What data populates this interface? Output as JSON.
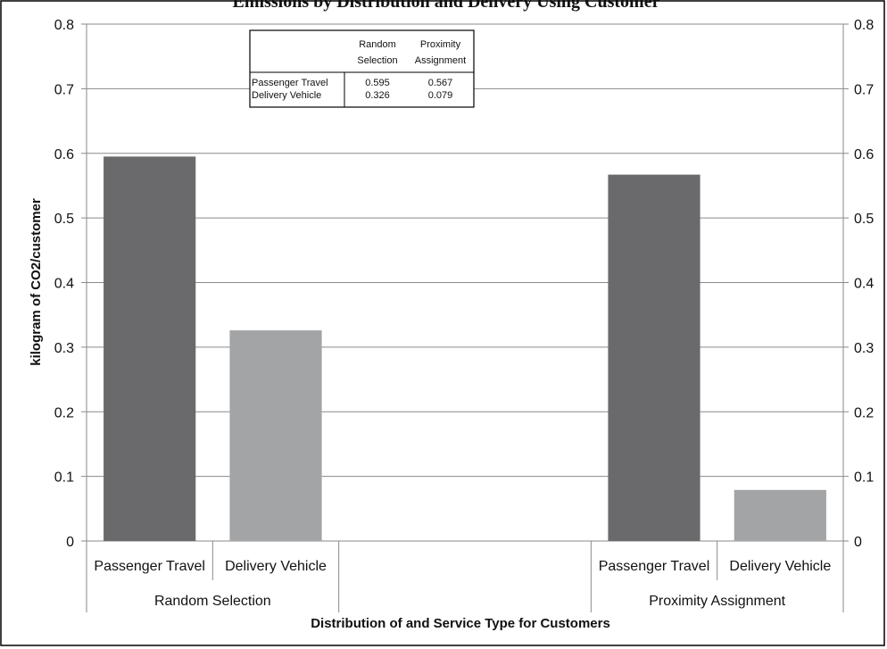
{
  "chart_data": {
    "type": "bar",
    "title": "Emissions by Distribution and Delivery Using Customer",
    "ylabel": "kilogram of CO2/customer",
    "xlabel": "Distribution of and Service Type for Customers",
    "ylim": [
      0,
      0.8
    ],
    "yticks": [
      "0",
      "0.1",
      "0.2",
      "0.3",
      "0.4",
      "0.5",
      "0.6",
      "0.7",
      "0.8"
    ],
    "groups": [
      {
        "name": "Random Selection",
        "bars": [
          {
            "label": "Passenger Travel",
            "value": 0.595,
            "color": "#6a6a6c"
          },
          {
            "label": "Delivery Vehicle",
            "value": 0.326,
            "color": "#a3a4a6"
          }
        ]
      },
      {
        "name": "",
        "bars": []
      },
      {
        "name": "Proximity Assignment",
        "bars": [
          {
            "label": "Passenger Travel",
            "value": 0.567,
            "color": "#6a6a6c"
          },
          {
            "label": "Delivery Vehicle",
            "value": 0.079,
            "color": "#a3a4a6"
          }
        ]
      }
    ],
    "grid": true,
    "data_table": {
      "col_headers": [
        [
          "Random",
          "Selection"
        ],
        [
          "Proximity",
          "Assignment"
        ]
      ],
      "rows": [
        {
          "label": "Passenger Travel",
          "values": [
            "0.595",
            "0.567"
          ]
        },
        {
          "label": "Delivery Vehicle",
          "values": [
            "0.326",
            "0.079"
          ]
        }
      ]
    }
  }
}
